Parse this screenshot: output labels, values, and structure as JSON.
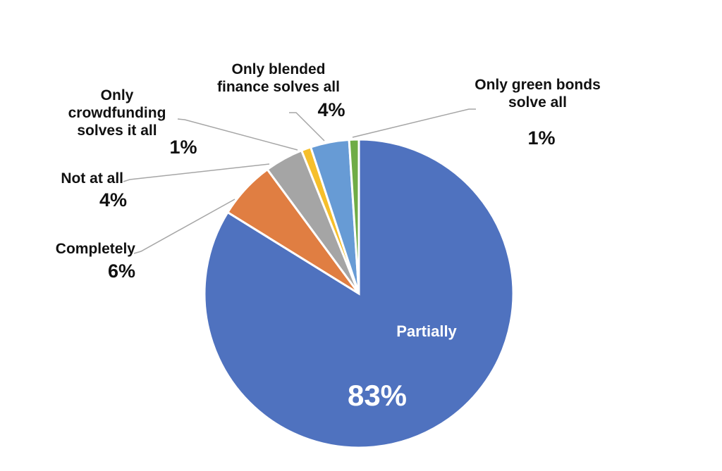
{
  "chart_data": {
    "type": "pie",
    "slices": [
      {
        "label": "Partially",
        "value": 83,
        "pct_label": "83%",
        "color": "#4f72bf"
      },
      {
        "label": "Completely",
        "value": 6,
        "pct_label": "6%",
        "color": "#e07e42"
      },
      {
        "label": "Not at all",
        "value": 4,
        "pct_label": "4%",
        "color": "#a5a5a5"
      },
      {
        "label": "Only crowdfunding solves it all",
        "value": 1,
        "pct_label": "1%",
        "color": "#f6bf2b"
      },
      {
        "label": "Only blended finance solves all",
        "value": 4,
        "pct_label": "4%",
        "color": "#679bd5"
      },
      {
        "label": "Only green bonds solve all",
        "value": 1,
        "pct_label": "1%",
        "color": "#6fac46"
      }
    ]
  }
}
